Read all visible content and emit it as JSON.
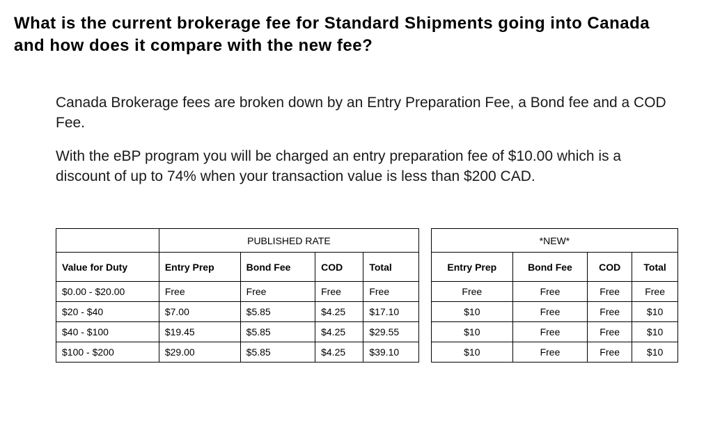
{
  "title": "What is the current brokerage fee for Standard Shipments going into Canada and how does it compare with the new fee?",
  "para1": "Canada Brokerage fees are broken down by an Entry Preparation Fee, a Bond fee and a COD Fee.",
  "para2": "With the eBP program you will be charged an entry preparation fee of $10.00 which is a discount of up to 74% when your transaction value is less than $200 CAD.",
  "table": {
    "section_published": "PUBLISHED RATE",
    "section_new": "*NEW*",
    "columns": {
      "value": "Value for Duty",
      "entry_prep": "Entry Prep",
      "bond_fee": "Bond Fee",
      "cod": "COD",
      "total": "Total",
      "entry_prep2": "Entry Prep",
      "bond_fee2": "Bond Fee",
      "cod2": "COD",
      "total2": "Total"
    },
    "rows": [
      {
        "value": "$0.00 - $20.00",
        "pub": [
          "Free",
          "Free",
          "Free",
          "Free"
        ],
        "new": [
          "Free",
          "Free",
          "Free",
          "Free"
        ]
      },
      {
        "value": "$20 - $40",
        "pub": [
          "$7.00",
          "$5.85",
          "$4.25",
          "$17.10"
        ],
        "new": [
          "$10",
          "Free",
          "Free",
          "$10"
        ]
      },
      {
        "value": "$40 - $100",
        "pub": [
          "$19.45",
          "$5.85",
          "$4.25",
          "$29.55"
        ],
        "new": [
          "$10",
          "Free",
          "Free",
          "$10"
        ]
      },
      {
        "value": "$100 - $200",
        "pub": [
          "$29.00",
          "$5.85",
          "$4.25",
          "$39.10"
        ],
        "new": [
          "$10",
          "Free",
          "Free",
          "$10"
        ]
      }
    ]
  }
}
